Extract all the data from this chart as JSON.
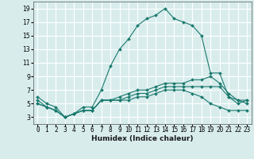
{
  "xlabel": "Humidex (Indice chaleur)",
  "x_hours": [
    0,
    1,
    2,
    3,
    4,
    5,
    6,
    7,
    8,
    9,
    10,
    11,
    12,
    13,
    14,
    15,
    16,
    17,
    18,
    19,
    20,
    21,
    22,
    23
  ],
  "line1": [
    6,
    5,
    4.5,
    3,
    3.5,
    4.5,
    4.5,
    7,
    10.5,
    13,
    14.5,
    16.5,
    17.5,
    18,
    19,
    17.5,
    17,
    16.5,
    15,
    9.5,
    9.5,
    6,
    5,
    5.5
  ],
  "line2": [
    5.5,
    4.5,
    4,
    3,
    3.5,
    4,
    4,
    5.5,
    5.5,
    6,
    6.5,
    7,
    7,
    7.5,
    8,
    8,
    8,
    8.5,
    8.5,
    9,
    8,
    6.5,
    5.5,
    5.5
  ],
  "line3": [
    5,
    4.5,
    4,
    3,
    3.5,
    4,
    4,
    5.5,
    5.5,
    5.5,
    6,
    6.5,
    6.5,
    7,
    7.5,
    7.5,
    7.5,
    7.5,
    7.5,
    7.5,
    7.5,
    6,
    5.5,
    5
  ],
  "line4": [
    5,
    4.5,
    4,
    3,
    3.5,
    4,
    4,
    5.5,
    5.5,
    5.5,
    5.5,
    6,
    6,
    6.5,
    7,
    7,
    7,
    6.5,
    6,
    5,
    4.5,
    4,
    4,
    4
  ],
  "ylim": [
    2,
    20
  ],
  "yticks": [
    3,
    5,
    7,
    9,
    11,
    13,
    15,
    17,
    19
  ],
  "line_color": "#1a7a6e",
  "bg_color": "#d8ecec",
  "grid_color": "#ffffff",
  "tick_fontsize": 5.5,
  "xlabel_fontsize": 6.5
}
